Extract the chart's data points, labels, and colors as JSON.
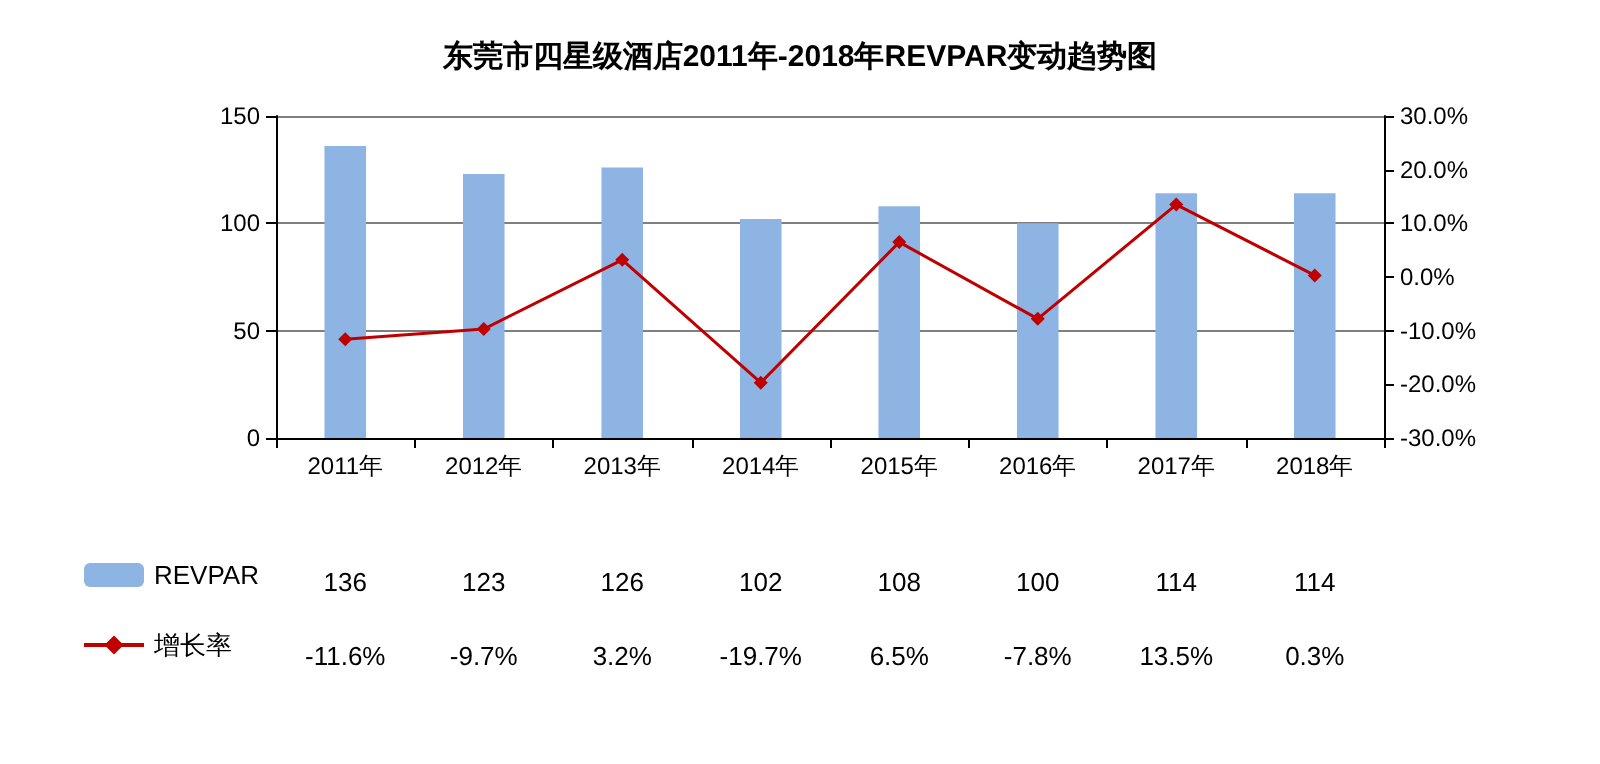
{
  "chart_data": {
    "type": "bar",
    "title": "东莞市四星级酒店2011年-2018年REVPAR变动趋势图",
    "categories": [
      "2011年",
      "2012年",
      "2013年",
      "2014年",
      "2015年",
      "2016年",
      "2017年",
      "2018年"
    ],
    "series": [
      {
        "name": "REVPAR",
        "color": "#8db4e2",
        "values": [
          136,
          123,
          126,
          102,
          108,
          100,
          114,
          114
        ],
        "value_labels": [
          "136",
          "123",
          "126",
          "102",
          "108",
          "100",
          "114",
          "114"
        ]
      },
      {
        "name": "增长率",
        "type": "line",
        "axis": "y2",
        "color": "#c00000",
        "values": [
          -11.6,
          -9.7,
          3.2,
          -19.7,
          6.5,
          -7.8,
          13.5,
          0.3
        ],
        "value_labels": [
          "-11.6%",
          "-9.7%",
          "3.2%",
          "-19.7%",
          "6.5%",
          "-7.8%",
          "13.5%",
          "0.3%"
        ]
      }
    ],
    "ylim": [
      0,
      150
    ],
    "yticks": [
      0,
      50,
      100,
      150
    ],
    "y2lim": [
      -30,
      30
    ],
    "y2ticks": [
      {
        "value": -30,
        "label": "-30.0%"
      },
      {
        "value": -20,
        "label": "-20.0%"
      },
      {
        "value": -10,
        "label": "-10.0%"
      },
      {
        "value": 0,
        "label": "0.0%"
      },
      {
        "value": 10,
        "label": "10.0%"
      },
      {
        "value": 20,
        "label": "20.0%"
      },
      {
        "value": 30,
        "label": "30.0%"
      }
    ],
    "grid": "y",
    "legend": "bottom left",
    "marker": "diamond"
  }
}
